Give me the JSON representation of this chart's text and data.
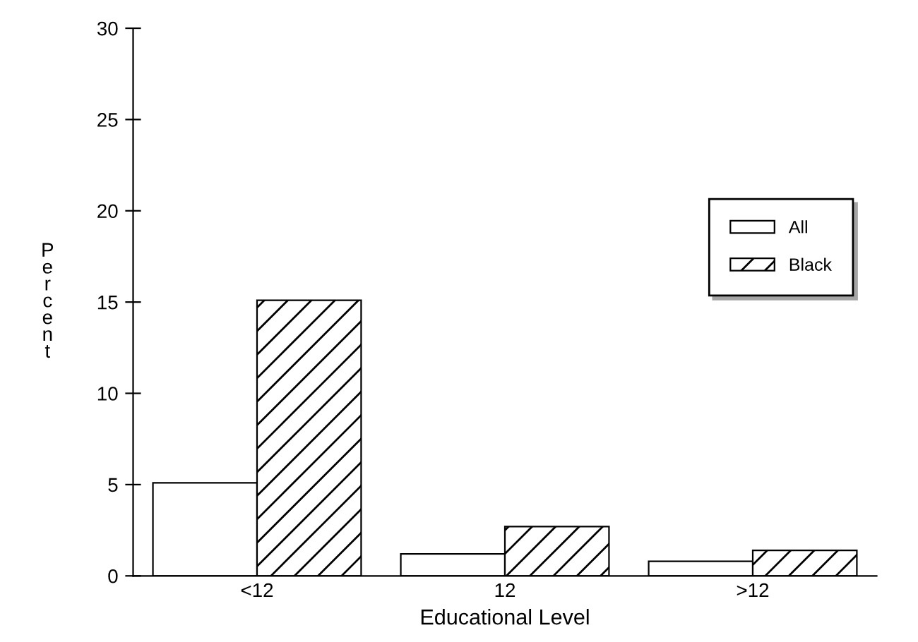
{
  "chart_data": {
    "type": "bar",
    "xlabel": "Educational Level",
    "ylabel": "Percent",
    "categories": [
      "<12",
      "12",
      ">12"
    ],
    "series": [
      {
        "name": "All",
        "color": "#ffffff",
        "values": [
          5.1,
          1.2,
          0.8
        ]
      },
      {
        "name": "Black",
        "color": "#000000",
        "values": [
          15.1,
          2.7,
          1.4
        ]
      }
    ],
    "ylim": [
      0,
      30
    ],
    "yticks": [
      0,
      5,
      10,
      15,
      20,
      25,
      30
    ],
    "grid": false,
    "legend": "right"
  }
}
